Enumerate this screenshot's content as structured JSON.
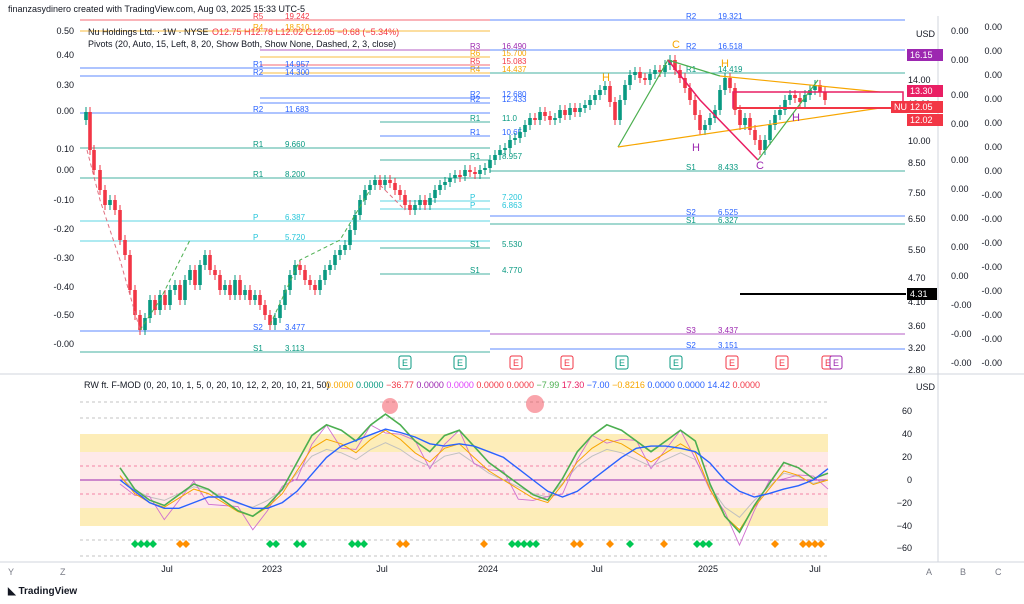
{
  "header": {
    "credit": "finanzasydinero created with TradingView.com, Aug 03, 2025 15:33 UTC-5"
  },
  "legend": {
    "symbol": "Nu Holdings Ltd. · 1W · NYSE",
    "ohlc": "O12.75 H12.78 L12.02 C12.05 −0.68 (−5.34%)",
    "pivots": "Pivots (20, Auto, 15, Left, 8, 20, Show Both, Show None, Dashed, 2, 3, close)"
  },
  "indicator_legend": {
    "name": "RW ft. F-MOD (0, 20, 10, 1, 5, 0, 20, 10, 12, 2, 20, 10, 21, 50)",
    "values": [
      "0.0000",
      "0.0000",
      "−36.77",
      "0.0000",
      "0.0000",
      "0.0000",
      "0.0000",
      "−7.99",
      "17.30",
      "−7.00",
      "−0.8216",
      "0.0000",
      "0.0000",
      "14.42",
      "0.0000"
    ]
  },
  "currency_label": "USD",
  "footer": {
    "brand": "TradingView",
    "right_buttons": [
      "A",
      "B",
      "C"
    ],
    "left_buttons": [
      "Y",
      "Z"
    ]
  },
  "colors": {
    "up": "#089981",
    "down": "#f23645",
    "ma": "#2962ff",
    "orange": "#f7a600",
    "green": "#4caf50",
    "pink": "#e91e63",
    "purple": "#9c27b0"
  },
  "chart_data": [
    {
      "type": "candlestick",
      "title": "Nu Holdings Ltd. · 1W · NYSE",
      "x_labels": [
        "Jul",
        "2023",
        "Jul",
        "2024",
        "Jul",
        "2025",
        "Jul"
      ],
      "price_axis": [
        "16.00",
        "14.00",
        "12.00",
        "10.00",
        "8.50",
        "7.50",
        "6.50",
        "5.50",
        "4.70",
        "4.10",
        "3.60",
        "3.20",
        "2.80"
      ],
      "left_axis": [
        "0.50",
        "0.40",
        "0.30",
        "0.00",
        "0.10",
        "0.00",
        "-0.10",
        "-0.20",
        "-0.30",
        "-0.40",
        "-0.50",
        "-0.00"
      ],
      "right_axis_1": [
        "0.00",
        "0.00",
        "0.00",
        "0.00",
        "0.00",
        "0.00",
        "0.00",
        "0.00",
        "0.00",
        "-0.00",
        "-0.00",
        "-0.00",
        "-0.00",
        "-0.00",
        "-0.00",
        "-0.00"
      ],
      "right_axis_2": [
        "0.00",
        "0.00",
        "0.00",
        "0.00",
        "0.00",
        "0.00",
        "0.00",
        "-0.00",
        "-0.00",
        "-0.00",
        "-0.00",
        "-0.00",
        "-0.00",
        "-0.00",
        "-0.00"
      ],
      "price_tags": [
        {
          "label": "16.15",
          "color": "#9c27b0"
        },
        {
          "label": "13.30",
          "color": "#e91e63"
        },
        {
          "label": "NU",
          "color": "#f23645"
        },
        {
          "label": "12.05",
          "color": "#f23645"
        },
        {
          "label": "12.02",
          "color": "#f23645"
        },
        {
          "label": "4.31",
          "color": "#000000"
        }
      ],
      "pivot_labels": [
        {
          "name": "R5",
          "value": "19.242"
        },
        {
          "name": "R4",
          "value": "18.510"
        },
        {
          "name": "R3",
          "value": "16.490"
        },
        {
          "name": "R6",
          "value": "15.700"
        },
        {
          "name": "R5",
          "value": "15.083"
        },
        {
          "name": "R4",
          "value": "14.437"
        },
        {
          "name": "R1",
          "value": "14.957"
        },
        {
          "name": "R2",
          "value": "14.300"
        },
        {
          "name": "R2",
          "value": "12.680"
        },
        {
          "name": "R2",
          "value": "12.433"
        },
        {
          "name": "R2",
          "value": "11.683"
        },
        {
          "name": "R1",
          "value": "11.0"
        },
        {
          "name": "R1",
          "value": "10.65"
        },
        {
          "name": "R1",
          "value": "9.660"
        },
        {
          "name": "R1",
          "value": "8.957"
        },
        {
          "name": "R1",
          "value": "8.200"
        },
        {
          "name": "P",
          "value": "7.200"
        },
        {
          "name": "P",
          "value": "6.863"
        },
        {
          "name": "P",
          "value": "6.387"
        },
        {
          "name": "P",
          "value": "5.720"
        },
        {
          "name": "S1",
          "value": "5.530"
        },
        {
          "name": "S1",
          "value": "4.770"
        },
        {
          "name": "S2",
          "value": "3.477"
        },
        {
          "name": "S1",
          "value": "3.113"
        },
        {
          "name": "R2",
          "value": "19.321"
        },
        {
          "name": "R2",
          "value": "16.518"
        },
        {
          "name": "R1",
          "value": "14.419"
        },
        {
          "name": "S1",
          "value": "8.433"
        },
        {
          "name": "S2",
          "value": "6.525"
        },
        {
          "name": "S1",
          "value": "6.327"
        },
        {
          "name": "S3",
          "value": "3.437"
        },
        {
          "name": "S2",
          "value": "3.151"
        }
      ],
      "pattern_labels": [
        "H",
        "C",
        "H",
        "H",
        "H",
        "C"
      ],
      "events": [
        "E",
        "E",
        "E",
        "E",
        "E",
        "E",
        "E",
        "E",
        "E",
        "E"
      ]
    },
    {
      "type": "line",
      "title": "RW ft. F-MOD",
      "y_ticks": [
        "60",
        "40",
        "20",
        "0",
        "−20",
        "−40",
        "−60"
      ],
      "ylim": [
        -70,
        70
      ]
    }
  ]
}
